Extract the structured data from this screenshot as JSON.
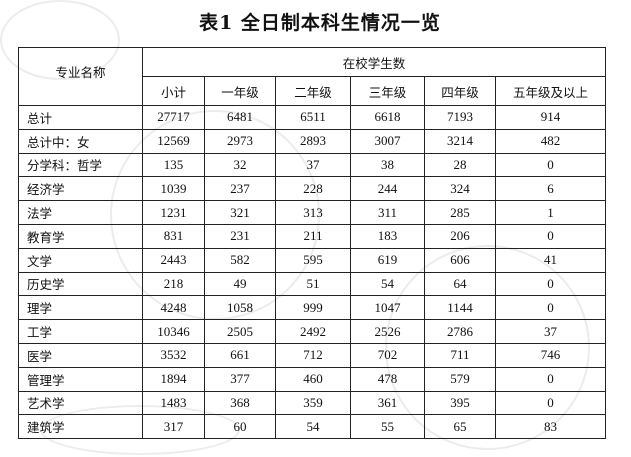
{
  "title": "表1 全日制本科生情况一览",
  "header": {
    "name_col": "专业名称",
    "group": "在校学生数",
    "columns": [
      "小计",
      "一年级",
      "二年级",
      "三年级",
      "四年级",
      "五年级及以上"
    ]
  },
  "rows": [
    {
      "name": "总计",
      "values": [
        "27717",
        "6481",
        "6511",
        "6618",
        "7193",
        "914"
      ]
    },
    {
      "name": "总计中：女",
      "values": [
        "12569",
        "2973",
        "2893",
        "3007",
        "3214",
        "482"
      ]
    },
    {
      "name": "分学科：哲学",
      "values": [
        "135",
        "32",
        "37",
        "38",
        "28",
        "0"
      ]
    },
    {
      "name": "经济学",
      "values": [
        "1039",
        "237",
        "228",
        "244",
        "324",
        "6"
      ]
    },
    {
      "name": "法学",
      "values": [
        "1231",
        "321",
        "313",
        "311",
        "285",
        "1"
      ]
    },
    {
      "name": "教育学",
      "values": [
        "831",
        "231",
        "211",
        "183",
        "206",
        "0"
      ]
    },
    {
      "name": "文学",
      "values": [
        "2443",
        "582",
        "595",
        "619",
        "606",
        "41"
      ]
    },
    {
      "name": "历史学",
      "values": [
        "218",
        "49",
        "51",
        "54",
        "64",
        "0"
      ]
    },
    {
      "name": "理学",
      "values": [
        "4248",
        "1058",
        "999",
        "1047",
        "1144",
        "0"
      ]
    },
    {
      "name": "工学",
      "values": [
        "10346",
        "2505",
        "2492",
        "2526",
        "2786",
        "37"
      ]
    },
    {
      "name": "医学",
      "values": [
        "3532",
        "661",
        "712",
        "702",
        "711",
        "746"
      ]
    },
    {
      "name": "管理学",
      "values": [
        "1894",
        "377",
        "460",
        "478",
        "579",
        "0"
      ]
    },
    {
      "name": "艺术学",
      "values": [
        "1483",
        "368",
        "359",
        "361",
        "395",
        "0"
      ]
    },
    {
      "name": "建筑学",
      "values": [
        "317",
        "60",
        "54",
        "55",
        "65",
        "83"
      ]
    }
  ]
}
